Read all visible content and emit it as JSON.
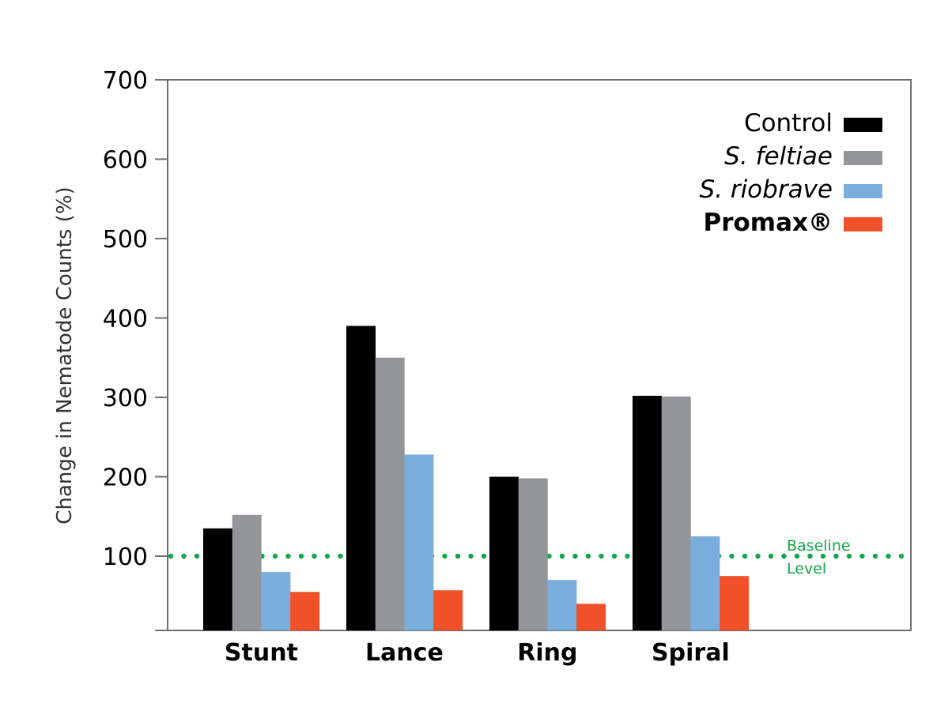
{
  "chart_data": {
    "type": "bar",
    "title": "",
    "xlabel": "",
    "ylabel": "Change in Nematode Counts (%)",
    "ylim": [
      0,
      700
    ],
    "yticks": [
      100,
      200,
      300,
      400,
      500,
      600,
      700
    ],
    "grid": false,
    "legend_position": "top-right",
    "categories": [
      "Stunt",
      "Lance",
      "Ring",
      "Spiral"
    ],
    "series": [
      {
        "name": "Control",
        "style": "normal",
        "color": "#000000",
        "values": [
          135,
          390,
          200,
          302
        ]
      },
      {
        "name": "S. feltiae",
        "style": "italic",
        "color": "#939598",
        "values": [
          152,
          350,
          198,
          301
        ]
      },
      {
        "name": "S. riobrave",
        "style": "italic",
        "color": "#7aaedc",
        "values": [
          80,
          228,
          70,
          125
        ]
      },
      {
        "name": "Promax®",
        "style": "bold",
        "color": "#f05129",
        "values": [
          55,
          57,
          40,
          75
        ]
      }
    ],
    "reference_line": {
      "value": 100,
      "label_line1": "Baseline",
      "label_line2": "Level",
      "color": "#12a64a",
      "style": "dotted"
    }
  }
}
